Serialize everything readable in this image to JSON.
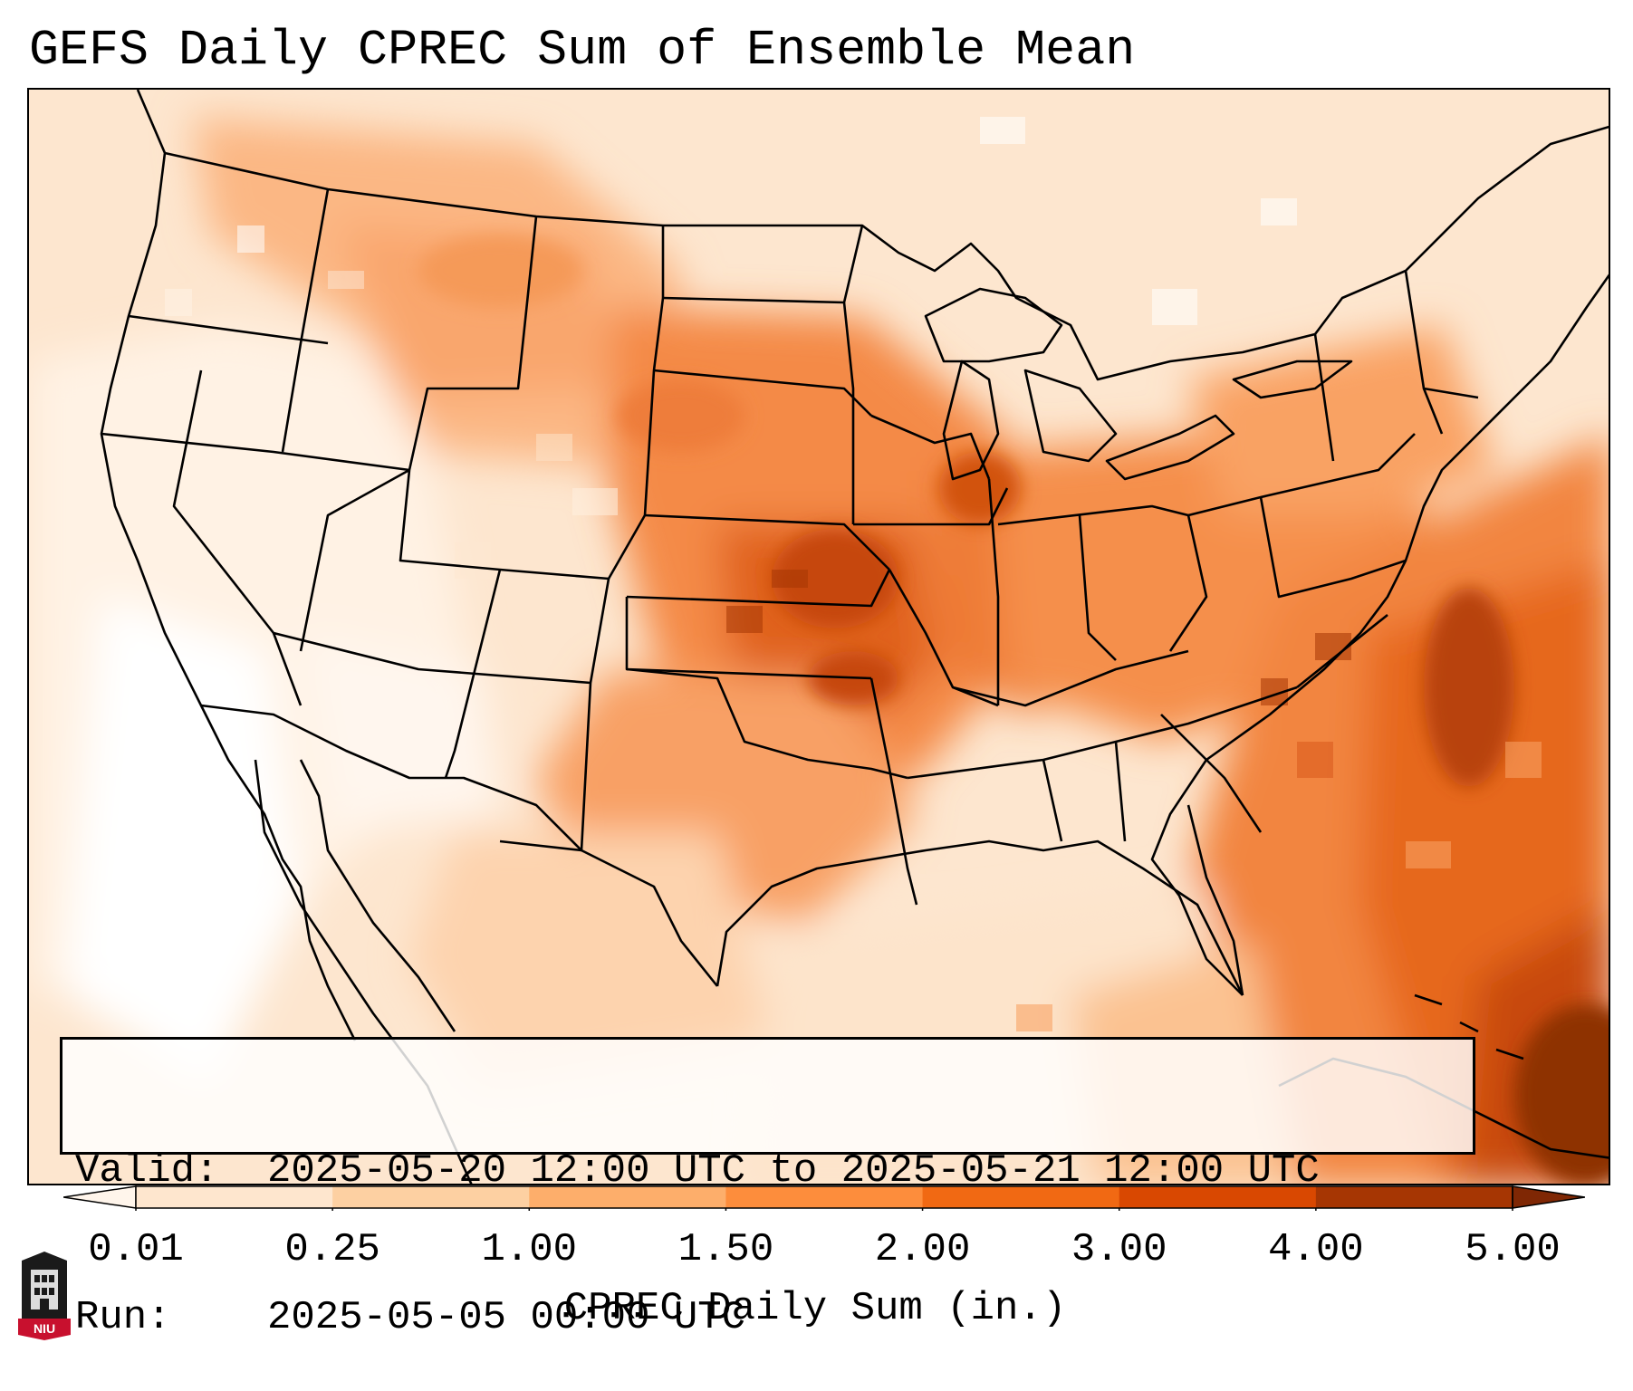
{
  "title": "GEFS Daily CPREC Sum of Ensemble Mean",
  "info": {
    "valid_label": "Valid:",
    "valid_value": "2025-05-20 12:00 UTC to 2025-05-21 12:00 UTC",
    "run_label": "Run:",
    "run_value": "2025-05-05 00:00 UTC"
  },
  "colorbar": {
    "label": "CPREC Daily Sum (in.)",
    "ticks": [
      "0.01",
      "0.25",
      "1.00",
      "1.50",
      "2.00",
      "3.00",
      "4.00",
      "5.00"
    ],
    "colors": [
      "#fff5eb",
      "#fee6ce",
      "#fdd0a2",
      "#fdae6b",
      "#fd8d3c",
      "#f16913",
      "#d94801",
      "#a63603",
      "#7f2704"
    ],
    "extend": "both"
  },
  "logo": {
    "text": "NIU",
    "color": "#c8102e"
  },
  "map": {
    "projection": "Lambert conformal, CONUS",
    "max_region": "Atlantic east of Florida / Bahamas",
    "heavy_regions": [
      "Kansas / Oklahoma",
      "Missouri / Illinois",
      "Southeast coast offshore"
    ]
  }
}
